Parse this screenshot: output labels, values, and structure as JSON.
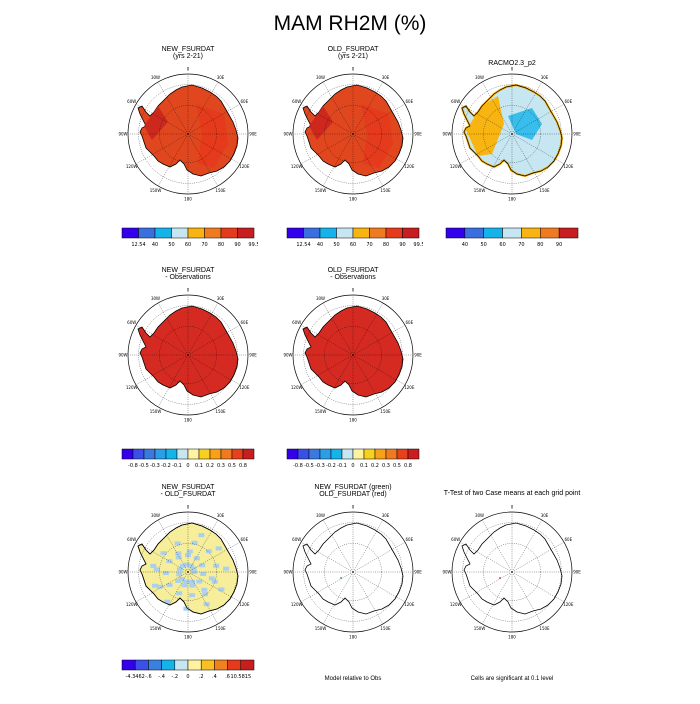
{
  "title": "MAM RH2M (%)",
  "chart_data": [
    {
      "type": "heatmap",
      "title": "NEW_FSURDAT",
      "subtitle": "(yrs 2-21)",
      "region": "Antarctica polar stereographic",
      "colorbar": {
        "labels": [
          "12.54",
          "40",
          "50",
          "60",
          "70",
          "80",
          "90",
          "99.5"
        ],
        "colors": [
          "#3300ee",
          "#3a6fe0",
          "#14b4ea",
          "#c6e6f2",
          "#f8b411",
          "#f07a20",
          "#e63a1c",
          "#c81e20"
        ]
      },
      "dominant_fill": "#e0471f"
    },
    {
      "type": "heatmap",
      "title": "OLD_FSURDAT",
      "subtitle": "(yrs 2-21)",
      "region": "Antarctica polar stereographic",
      "colorbar": {
        "labels": [
          "12.54",
          "40",
          "50",
          "60",
          "70",
          "80",
          "90",
          "99.5"
        ],
        "colors": [
          "#3300ee",
          "#3a6fe0",
          "#14b4ea",
          "#c6e6f2",
          "#f8b411",
          "#f07a20",
          "#e63a1c",
          "#c81e20"
        ]
      },
      "dominant_fill": "#e0471f"
    },
    {
      "type": "heatmap",
      "title": "RACMO2.3_p2",
      "subtitle": "",
      "region": "Antarctica polar stereographic",
      "colorbar": {
        "labels": [
          "40",
          "50",
          "60",
          "70",
          "80",
          "90"
        ],
        "colors": [
          "#3300ee",
          "#3a6fe0",
          "#14b4ea",
          "#c6e6f2",
          "#f8b411",
          "#f07a20",
          "#c81e20"
        ]
      },
      "dominant_fill": "#c6e6f2"
    },
    {
      "type": "heatmap",
      "title": "NEW_FSURDAT",
      "subtitle": "- Observations",
      "region": "Antarctica polar stereographic",
      "colorbar": {
        "labels": [
          "-0.8",
          "-0.5",
          "-0.3",
          "-0.2",
          "-0.1",
          "0",
          "0.1",
          "0.2",
          "0.3",
          "0.5",
          "0.8"
        ],
        "colors": [
          "#3300ee",
          "#3a4fe8",
          "#3a7ae0",
          "#2a9ee8",
          "#14b4ea",
          "#c6e6f2",
          "#fff2a0",
          "#f8d020",
          "#f8a018",
          "#f07a20",
          "#e6401c",
          "#c81e20"
        ]
      },
      "dominant_fill": "#d42a22"
    },
    {
      "type": "heatmap",
      "title": "OLD_FSURDAT",
      "subtitle": "- Observations",
      "region": "Antarctica polar stereographic",
      "colorbar": {
        "labels": [
          "-0.8",
          "-0.5",
          "-0.3",
          "-0.2",
          "-0.1",
          "0",
          "0.1",
          "0.2",
          "0.3",
          "0.5",
          "0.8"
        ],
        "colors": [
          "#3300ee",
          "#3a4fe8",
          "#3a7ae0",
          "#2a9ee8",
          "#14b4ea",
          "#c6e6f2",
          "#fff2a0",
          "#f8d020",
          "#f8a018",
          "#f07a20",
          "#e6401c",
          "#c81e20"
        ]
      },
      "dominant_fill": "#d42a22"
    },
    {
      "type": "heatmap",
      "title": "NEW_FSURDAT",
      "subtitle": "- OLD_FSURDAT",
      "region": "Antarctica polar stereographic",
      "colorbar": {
        "labels": [
          "-4.3462",
          "-.6",
          "-.4",
          "-.2",
          "0",
          ".2",
          ".4",
          ".6",
          "10.5815"
        ],
        "colors": [
          "#3300ee",
          "#3a50e8",
          "#3a80e0",
          "#14b4ea",
          "#c6e6f2",
          "#fff2a0",
          "#f8c020",
          "#f08020",
          "#e63a1c",
          "#c81e20"
        ]
      },
      "dominant_fill": "#f6ee9a"
    },
    {
      "type": "heatmap",
      "title": "NEW_FSURDAT (green)",
      "subtitle": "OLD_FSURDAT (red)",
      "region": "Antarctica polar stereographic",
      "caption": "Model relative to Obs",
      "dominant_fill": "none"
    },
    {
      "type": "heatmap",
      "title": "T-Test of two Case means at each grid point",
      "subtitle": "",
      "region": "Antarctica polar stereographic",
      "caption": "Cells are significant at 0.1 level",
      "dominant_fill": "none"
    }
  ],
  "map_labels": {
    "lon": [
      "0",
      "30E",
      "60E",
      "90E",
      "120E",
      "150E",
      "180",
      "150W",
      "120W",
      "90W",
      "60W",
      "30W"
    ]
  }
}
